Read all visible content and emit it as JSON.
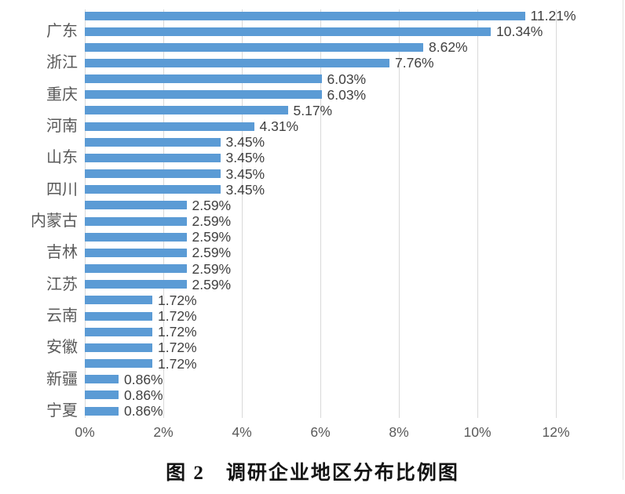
{
  "caption": {
    "text": "图 2　调研企业地区分布比例图"
  },
  "chart_data": {
    "type": "bar",
    "orientation": "horizontal",
    "title": "",
    "xlabel": "",
    "ylabel": "",
    "xlim": [
      0,
      12
    ],
    "grid": true,
    "legend": "none",
    "colors": {
      "bar": "#5b9bd5",
      "gridline": "#d9d9d9",
      "category_label": "#595959",
      "value_label": "#404040",
      "axis_tick_label": "#595959"
    },
    "x_ticks": [
      {
        "label": "0%",
        "value": 0
      },
      {
        "label": "2%",
        "value": 2
      },
      {
        "label": "4%",
        "value": 4
      },
      {
        "label": "6%",
        "value": 6
      },
      {
        "label": "8%",
        "value": 8
      },
      {
        "label": "10%",
        "value": 10
      },
      {
        "label": "12%",
        "value": 12
      }
    ],
    "bars": [
      {
        "category": "",
        "value": 11.21,
        "value_label": "11.21%"
      },
      {
        "category": "广东",
        "value": 10.34,
        "value_label": "10.34%"
      },
      {
        "category": "",
        "value": 8.62,
        "value_label": "8.62%"
      },
      {
        "category": "浙江",
        "value": 7.76,
        "value_label": "7.76%"
      },
      {
        "category": "",
        "value": 6.03,
        "value_label": "6.03%"
      },
      {
        "category": "重庆",
        "value": 6.03,
        "value_label": "6.03%"
      },
      {
        "category": "",
        "value": 5.17,
        "value_label": "5.17%"
      },
      {
        "category": "河南",
        "value": 4.31,
        "value_label": "4.31%"
      },
      {
        "category": "",
        "value": 3.45,
        "value_label": "3.45%"
      },
      {
        "category": "山东",
        "value": 3.45,
        "value_label": "3.45%"
      },
      {
        "category": "",
        "value": 3.45,
        "value_label": "3.45%"
      },
      {
        "category": "四川",
        "value": 3.45,
        "value_label": "3.45%"
      },
      {
        "category": "",
        "value": 2.59,
        "value_label": "2.59%"
      },
      {
        "category": "内蒙古",
        "value": 2.59,
        "value_label": "2.59%"
      },
      {
        "category": "",
        "value": 2.59,
        "value_label": "2.59%"
      },
      {
        "category": "吉林",
        "value": 2.59,
        "value_label": "2.59%"
      },
      {
        "category": "",
        "value": 2.59,
        "value_label": "2.59%"
      },
      {
        "category": "江苏",
        "value": 2.59,
        "value_label": "2.59%"
      },
      {
        "category": "",
        "value": 1.72,
        "value_label": "1.72%"
      },
      {
        "category": "云南",
        "value": 1.72,
        "value_label": "1.72%"
      },
      {
        "category": "",
        "value": 1.72,
        "value_label": "1.72%"
      },
      {
        "category": "安徽",
        "value": 1.72,
        "value_label": "1.72%"
      },
      {
        "category": "",
        "value": 1.72,
        "value_label": "1.72%"
      },
      {
        "category": "新疆",
        "value": 0.86,
        "value_label": "0.86%"
      },
      {
        "category": "",
        "value": 0.86,
        "value_label": "0.86%"
      },
      {
        "category": "宁夏",
        "value": 0.86,
        "value_label": "0.86%"
      }
    ]
  }
}
